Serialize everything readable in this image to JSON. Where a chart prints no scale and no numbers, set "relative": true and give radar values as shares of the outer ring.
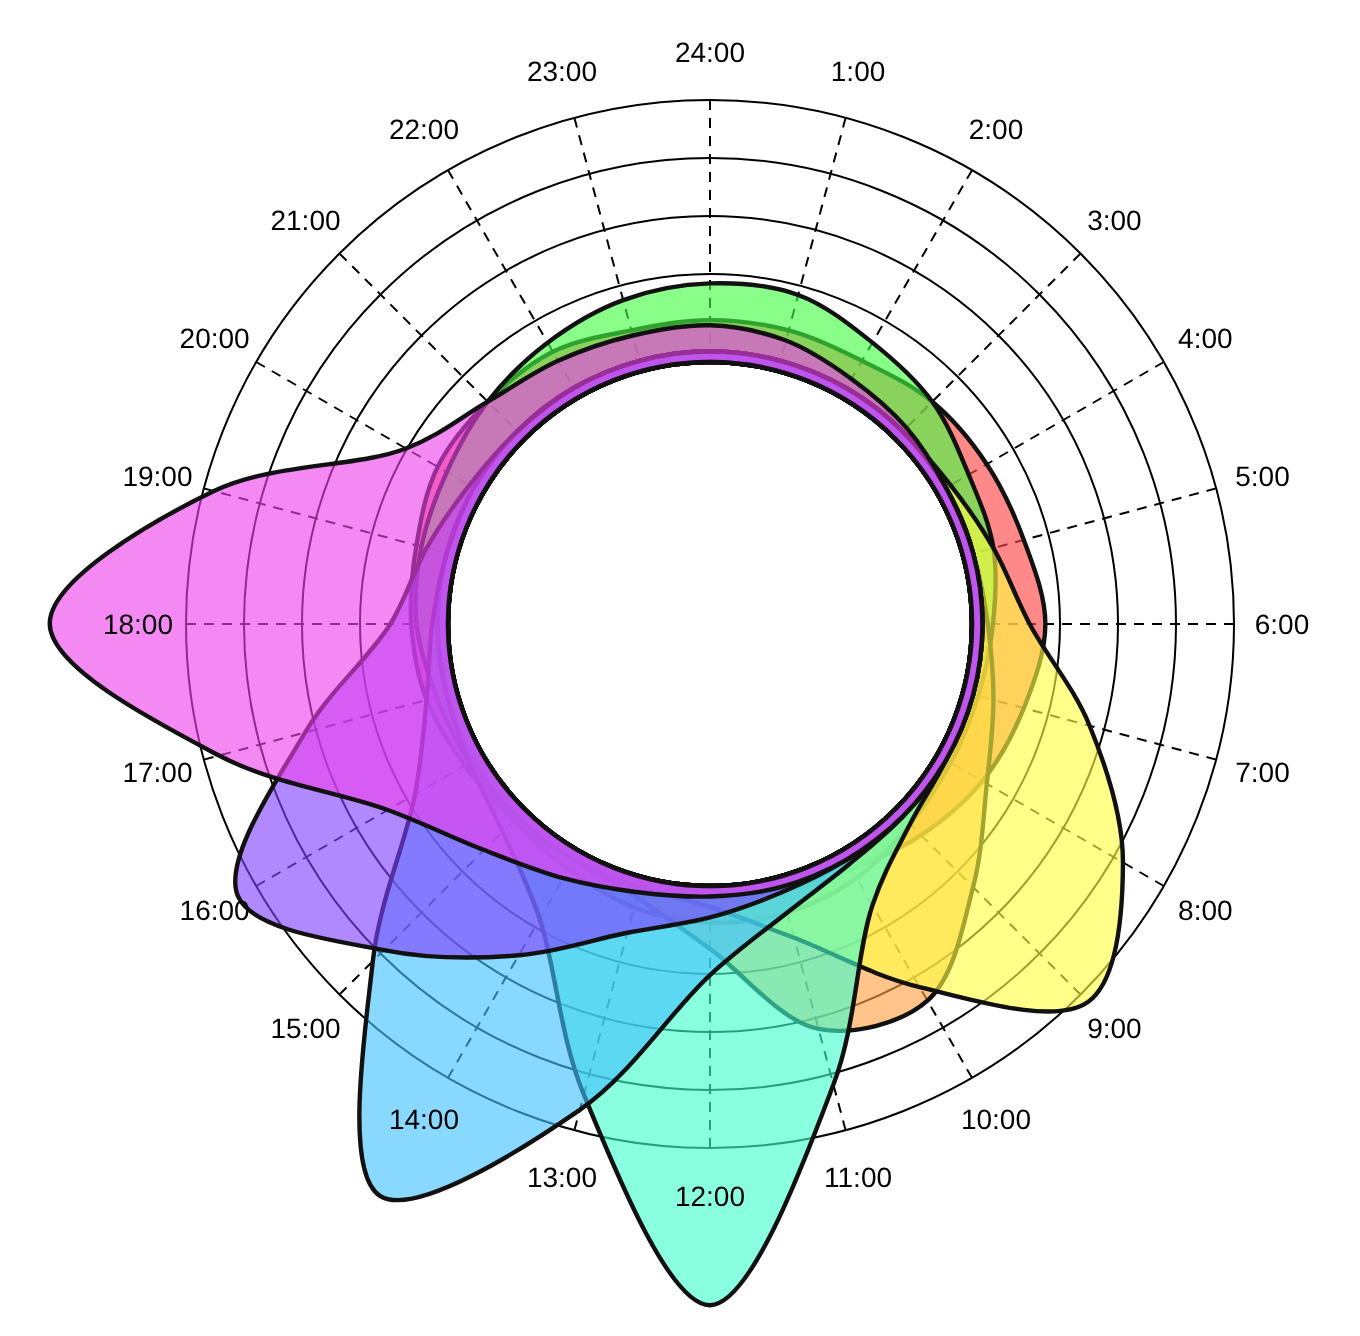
{
  "chart_data": {
    "type": "radar",
    "relative": true,
    "categories": [
      "24:00",
      "1:00",
      "2:00",
      "3:00",
      "4:00",
      "5:00",
      "6:00",
      "7:00",
      "8:00",
      "9:00",
      "10:00",
      "11:00",
      "12:00",
      "13:00",
      "14:00",
      "15:00",
      "16:00",
      "17:00",
      "18:00",
      "19:00",
      "20:00",
      "21:00",
      "22:00",
      "23:00"
    ],
    "grid": true,
    "series": [
      {
        "color": "#ff4040",
        "values": [
          0.58,
          0.58,
          0.58,
          0.6,
          0.61,
          0.62,
          0.64,
          0.62,
          0.6,
          0.57,
          0.54,
          0.53,
          0.52,
          0.52,
          0.52,
          0.53,
          0.54,
          0.56,
          0.57,
          0.58,
          0.6,
          0.6,
          0.6,
          0.58
        ]
      },
      {
        "color": "#40ff40",
        "values": [
          0.65,
          0.65,
          0.62,
          0.6,
          0.57,
          0.56,
          0.54,
          0.53,
          0.53,
          0.54,
          0.56,
          0.57,
          0.57,
          0.56,
          0.54,
          0.53,
          0.53,
          0.54,
          0.56,
          0.57,
          0.58,
          0.6,
          0.62,
          0.64
        ]
      },
      {
        "color": "#ffa040",
        "values": [
          0.52,
          0.52,
          0.52,
          0.52,
          0.52,
          0.52,
          0.53,
          0.56,
          0.61,
          0.71,
          0.83,
          0.8,
          0.62,
          0.54,
          0.52,
          0.52,
          0.52,
          0.52,
          0.52,
          0.52,
          0.52,
          0.52,
          0.52,
          0.52
        ]
      },
      {
        "color": "#ffff40",
        "values": [
          0.52,
          0.52,
          0.52,
          0.52,
          0.53,
          0.56,
          0.61,
          0.75,
          0.91,
          1.02,
          0.8,
          0.62,
          0.54,
          0.52,
          0.52,
          0.52,
          0.52,
          0.52,
          0.52,
          0.52,
          0.52,
          0.52,
          0.52,
          0.52
        ]
      },
      {
        "color": "#40ffcc",
        "values": [
          0.52,
          0.52,
          0.52,
          0.52,
          0.52,
          0.52,
          0.52,
          0.52,
          0.52,
          0.54,
          0.62,
          0.91,
          1.3,
          0.93,
          0.65,
          0.56,
          0.53,
          0.52,
          0.52,
          0.52,
          0.52,
          0.52,
          0.52,
          0.52
        ]
      },
      {
        "color": "#40c0ff",
        "values": [
          0.52,
          0.52,
          0.52,
          0.52,
          0.52,
          0.52,
          0.52,
          0.52,
          0.52,
          0.52,
          0.53,
          0.57,
          0.67,
          0.96,
          1.26,
          0.91,
          0.65,
          0.56,
          0.53,
          0.52,
          0.52,
          0.52,
          0.52,
          0.52
        ]
      },
      {
        "color": "#8040ff",
        "values": [
          0.52,
          0.52,
          0.52,
          0.52,
          0.52,
          0.52,
          0.52,
          0.52,
          0.52,
          0.52,
          0.52,
          0.53,
          0.56,
          0.61,
          0.73,
          0.88,
          1.04,
          0.8,
          0.61,
          0.56,
          0.53,
          0.52,
          0.52,
          0.52
        ]
      },
      {
        "color": "#ee40ee",
        "values": [
          0.57,
          0.56,
          0.54,
          0.53,
          0.52,
          0.52,
          0.52,
          0.52,
          0.52,
          0.52,
          0.52,
          0.52,
          0.52,
          0.53,
          0.56,
          0.61,
          0.71,
          0.97,
          1.26,
          0.98,
          0.67,
          0.6,
          0.58,
          0.57
        ]
      }
    ]
  }
}
